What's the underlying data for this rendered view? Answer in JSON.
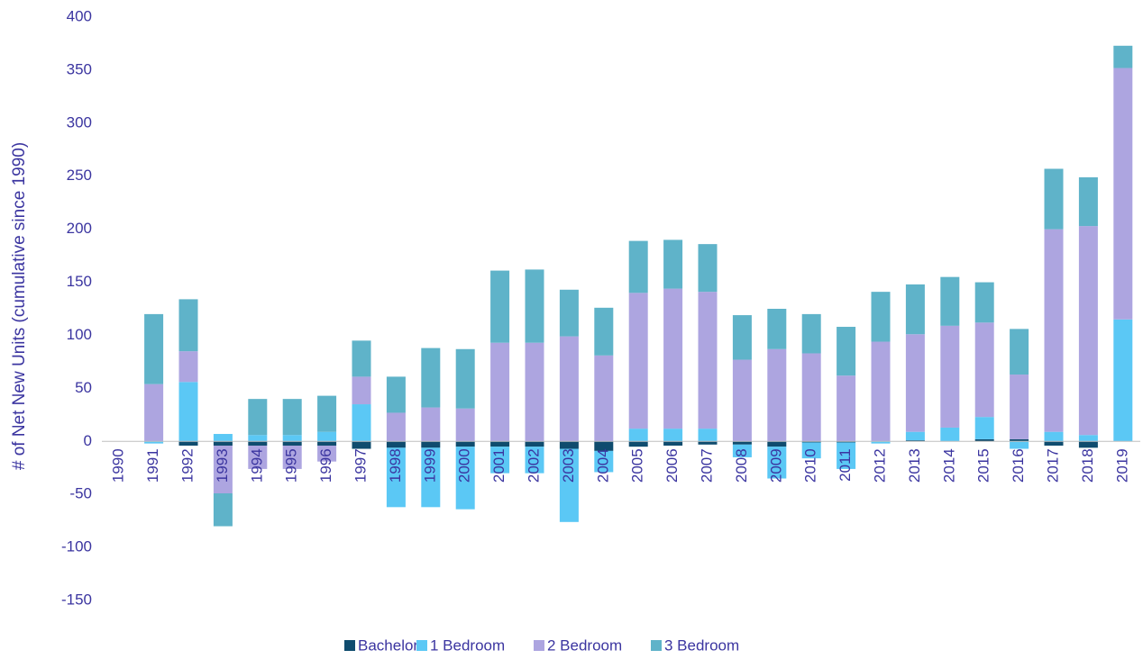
{
  "chart_data": {
    "type": "bar",
    "stacked": true,
    "y_label": "# of Net New Units (cumulative since 1990)",
    "categories": [
      "1990",
      "1991",
      "1992",
      "1993",
      "1994",
      "1995",
      "1996",
      "1997",
      "1998",
      "1999",
      "2000",
      "2001",
      "2002",
      "2003",
      "2004",
      "2005",
      "2006",
      "2007",
      "2008",
      "2009",
      "2010",
      "2011",
      "2012",
      "2013",
      "2014",
      "2015",
      "2016",
      "2017",
      "2018",
      "2019"
    ],
    "series": [
      {
        "name": "Bachelor",
        "color": "#0f4c6e",
        "values": [
          0,
          0,
          -4,
          -4,
          -4,
          -4,
          -4,
          -7,
          -6,
          -6,
          -5,
          -5,
          -5,
          -7,
          -9,
          -5,
          -4,
          -3,
          -3,
          -5,
          -1,
          -1,
          0,
          1,
          0,
          2,
          2,
          -4,
          -6,
          0
        ]
      },
      {
        "name": "1 Bedroom",
        "color": "#5bc8f5",
        "values": [
          0,
          -2,
          56,
          7,
          6,
          6,
          9,
          35,
          -56,
          -56,
          -59,
          -25,
          -25,
          -69,
          -20,
          12,
          12,
          12,
          -12,
          -30,
          -15,
          -25,
          -2,
          8,
          13,
          21,
          -7,
          9,
          6,
          115
        ]
      },
      {
        "name": "2 Bedroom",
        "color": "#ada5e0",
        "values": [
          0,
          54,
          29,
          -45,
          -22,
          -22,
          -15,
          26,
          27,
          32,
          31,
          93,
          93,
          99,
          81,
          128,
          132,
          129,
          77,
          87,
          83,
          62,
          94,
          92,
          96,
          89,
          61,
          191,
          197,
          237
        ]
      },
      {
        "name": "3 Bedroom",
        "color": "#5fb3c9",
        "values": [
          0,
          66,
          49,
          -31,
          34,
          34,
          34,
          34,
          34,
          56,
          56,
          68,
          69,
          44,
          45,
          49,
          46,
          45,
          42,
          38,
          37,
          46,
          47,
          47,
          46,
          38,
          43,
          57,
          46,
          21
        ]
      }
    ],
    "ylim": [
      -150,
      400
    ],
    "yticks": [
      -150,
      -100,
      -50,
      0,
      50,
      100,
      150,
      200,
      250,
      300,
      350,
      400
    ],
    "grid": false,
    "legend": "bottom"
  }
}
